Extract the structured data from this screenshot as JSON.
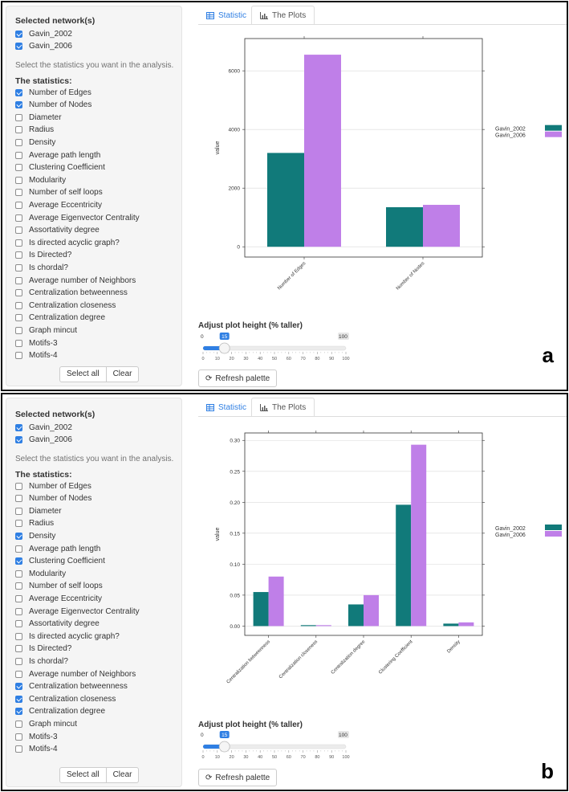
{
  "colors": {
    "series1": "#117a7a",
    "series2": "#bf7fe8",
    "accent": "#2f7fe3"
  },
  "panels": [
    {
      "label": "a",
      "sidebar": {
        "networks_title": "Selected network(s)",
        "networks": [
          {
            "label": "Gavin_2002",
            "checked": true
          },
          {
            "label": "Gavin_2006",
            "checked": true
          }
        ],
        "help_text": "Select the statistics you want in the analysis.",
        "stats_title": "The statistics:",
        "stats": [
          {
            "label": "Number of Edges",
            "checked": true
          },
          {
            "label": "Number of Nodes",
            "checked": true
          },
          {
            "label": "Diameter",
            "checked": false
          },
          {
            "label": "Radius",
            "checked": false
          },
          {
            "label": "Density",
            "checked": false
          },
          {
            "label": "Average path length",
            "checked": false
          },
          {
            "label": "Clustering Coefficient",
            "checked": false
          },
          {
            "label": "Modularity",
            "checked": false
          },
          {
            "label": "Number of self loops",
            "checked": false
          },
          {
            "label": "Average Eccentricity",
            "checked": false
          },
          {
            "label": "Average Eigenvector Centrality",
            "checked": false
          },
          {
            "label": "Assortativity degree",
            "checked": false
          },
          {
            "label": "Is directed acyclic graph?",
            "checked": false
          },
          {
            "label": "Is Directed?",
            "checked": false
          },
          {
            "label": "Is chordal?",
            "checked": false
          },
          {
            "label": "Average number of Neighbors",
            "checked": false
          },
          {
            "label": "Centralization betweenness",
            "checked": false
          },
          {
            "label": "Centralization closeness",
            "checked": false
          },
          {
            "label": "Centralization degree",
            "checked": false
          },
          {
            "label": "Graph mincut",
            "checked": false
          },
          {
            "label": "Motifs-3",
            "checked": false
          },
          {
            "label": "Motifs-4",
            "checked": false
          }
        ],
        "select_all": "Select all",
        "clear": "Clear"
      },
      "tabs": {
        "statistic": "Statistic",
        "plots": "The Plots"
      },
      "slider": {
        "label": "Adjust plot height (% taller)",
        "min": 0,
        "max": 100,
        "value": 15,
        "ticks": [
          "0",
          "10",
          "20",
          "30",
          "40",
          "50",
          "60",
          "70",
          "80",
          "90",
          "100"
        ]
      },
      "refresh_label": "Refresh palette"
    },
    {
      "label": "b",
      "sidebar": {
        "networks_title": "Selected network(s)",
        "networks": [
          {
            "label": "Gavin_2002",
            "checked": true
          },
          {
            "label": "Gavin_2006",
            "checked": true
          }
        ],
        "help_text": "Select the statistics you want in the analysis.",
        "stats_title": "The statistics:",
        "stats": [
          {
            "label": "Number of Edges",
            "checked": false
          },
          {
            "label": "Number of Nodes",
            "checked": false
          },
          {
            "label": "Diameter",
            "checked": false
          },
          {
            "label": "Radius",
            "checked": false
          },
          {
            "label": "Density",
            "checked": true
          },
          {
            "label": "Average path length",
            "checked": false
          },
          {
            "label": "Clustering Coefficient",
            "checked": true
          },
          {
            "label": "Modularity",
            "checked": false
          },
          {
            "label": "Number of self loops",
            "checked": false
          },
          {
            "label": "Average Eccentricity",
            "checked": false
          },
          {
            "label": "Average Eigenvector Centrality",
            "checked": false
          },
          {
            "label": "Assortativity degree",
            "checked": false
          },
          {
            "label": "Is directed acyclic graph?",
            "checked": false
          },
          {
            "label": "Is Directed?",
            "checked": false
          },
          {
            "label": "Is chordal?",
            "checked": false
          },
          {
            "label": "Average number of Neighbors",
            "checked": false
          },
          {
            "label": "Centralization betweenness",
            "checked": true
          },
          {
            "label": "Centralization closeness",
            "checked": true
          },
          {
            "label": "Centralization degree",
            "checked": true
          },
          {
            "label": "Graph mincut",
            "checked": false
          },
          {
            "label": "Motifs-3",
            "checked": false
          },
          {
            "label": "Motifs-4",
            "checked": false
          }
        ],
        "select_all": "Select all",
        "clear": "Clear"
      },
      "tabs": {
        "statistic": "Statistic",
        "plots": "The Plots"
      },
      "slider": {
        "label": "Adjust plot height (% taller)",
        "min": 0,
        "max": 100,
        "value": 15,
        "ticks": [
          "0",
          "10",
          "20",
          "30",
          "40",
          "50",
          "60",
          "70",
          "80",
          "90",
          "100"
        ]
      },
      "refresh_label": "Refresh palette"
    }
  ],
  "chart_data": [
    {
      "type": "bar",
      "categories": [
        "Number of Edges",
        "Number of Nodes"
      ],
      "series": [
        {
          "name": "Gavin_2002",
          "values": [
            3200,
            1350
          ]
        },
        {
          "name": "Gavin_2006",
          "values": [
            6550,
            1430
          ]
        }
      ],
      "ylabel": "value",
      "ylim": [
        -350,
        7100
      ],
      "yticks": [
        0,
        2000,
        4000,
        6000
      ],
      "ytick_labels": [
        "0",
        "2000",
        "4000",
        "6000"
      ],
      "legend": "right"
    },
    {
      "type": "bar",
      "categories": [
        "Centralization betweenness",
        "Centralization closeness",
        "Centralization degree",
        "Clustering Coefficient",
        "Density"
      ],
      "series": [
        {
          "name": "Gavin_2002",
          "values": [
            0.055,
            0.0015,
            0.035,
            0.196,
            0.004
          ]
        },
        {
          "name": "Gavin_2006",
          "values": [
            0.08,
            0.0015,
            0.05,
            0.293,
            0.006
          ]
        }
      ],
      "ylabel": "value",
      "ylim": [
        -0.015,
        0.312
      ],
      "yticks": [
        0,
        0.05,
        0.1,
        0.15,
        0.2,
        0.25,
        0.3
      ],
      "ytick_labels": [
        "0.00",
        "0.05",
        "0.10",
        "0.15",
        "0.20",
        "0.25",
        "0.30"
      ],
      "legend": "right"
    }
  ]
}
